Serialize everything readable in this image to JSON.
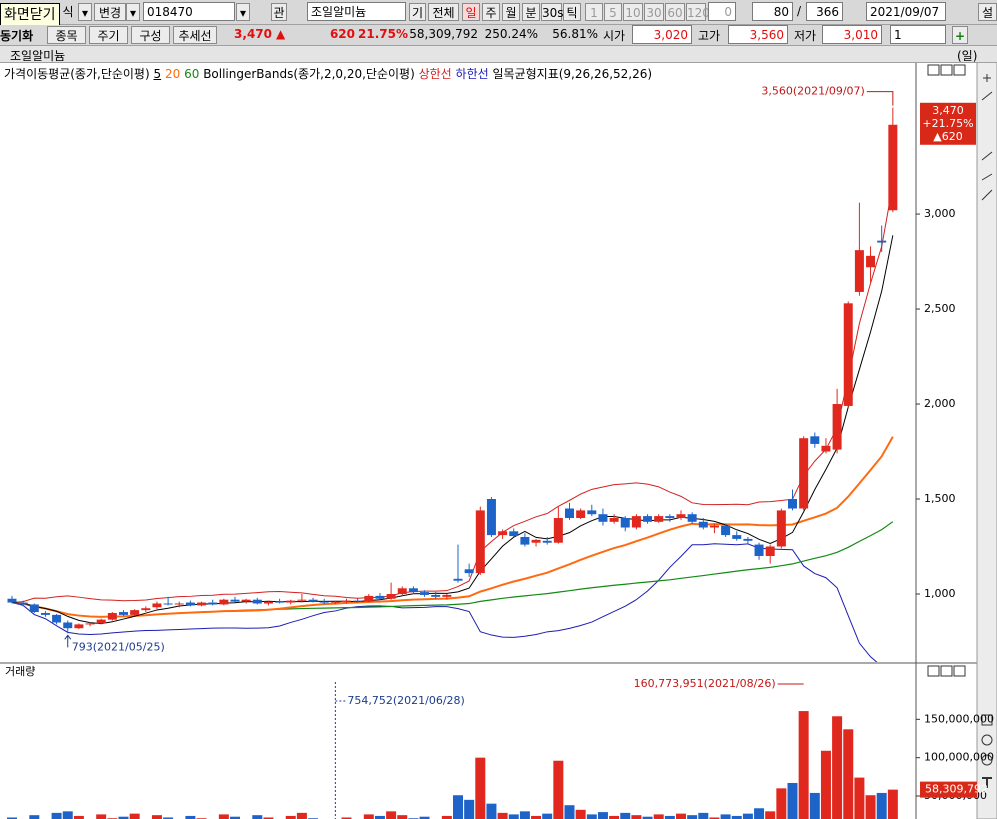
{
  "toolbar": {
    "close_tooltip": "화면닫기",
    "screen_fragment": "식",
    "change": "변경",
    "code": "018470",
    "watch": "관",
    "name": "조일알미늄",
    "basic": "기",
    "all": "전체",
    "periods": [
      "일",
      "주",
      "월",
      "분",
      "30s",
      "틱"
    ],
    "intervals": [
      "1",
      "5",
      "10",
      "30",
      "60",
      "120"
    ],
    "count_box": "0",
    "view_count": "80",
    "separator": "/",
    "total_count": "366",
    "date": "2021/09/07",
    "settings": "설"
  },
  "quote_bar": {
    "sync": "동기화",
    "buttons": [
      "종목",
      "주기",
      "구성",
      "추세선"
    ],
    "price": "3,470",
    "arrow": "▲",
    "change": "620",
    "change_rate": "21.75%",
    "volume": "58,309,792",
    "volume_ratio": "250.24%",
    "turnover": "56.81%",
    "open_label": "시가",
    "open": "3,020",
    "high_label": "고가",
    "high": "3,560",
    "low_label": "저가",
    "low": "3,010",
    "pane_count": "1"
  },
  "chart_data": [
    {
      "type": "candlestick",
      "title": "조일알미늄",
      "period": "(일)",
      "ma_label": "가격이동평균(종가,단순이평)",
      "ma_periods": [
        5,
        20,
        60
      ],
      "ma_colors": [
        "#000000",
        "#ff6a10",
        "#138a13"
      ],
      "bb_label": "BollingerBands(종가,2,0,20,단순이평)",
      "bb_upper": "상한선",
      "bb_lower": "하한선",
      "bb_colors": [
        "#d42020",
        "#1c1cb4"
      ],
      "ichimoku_label": "일목균형지표(9,26,26,52,26)",
      "up_color": "#e0281e",
      "down_color": "#1e64c8",
      "open": [
        975,
        955,
        945,
        900,
        890,
        850,
        820,
        840,
        845,
        865,
        905,
        890,
        915,
        930,
        950,
        945,
        955,
        940,
        955,
        945,
        970,
        960,
        970,
        950,
        960,
        955,
        965,
        970,
        960,
        955,
        960,
        965,
        960,
        990,
        975,
        1000,
        1030,
        1010,
        995,
        985,
        1080,
        1130,
        1110,
        1500,
        1310,
        1330,
        1300,
        1270,
        1280,
        1270,
        1450,
        1400,
        1440,
        1420,
        1380,
        1400,
        1350,
        1410,
        1380,
        1410,
        1400,
        1420,
        1380,
        1350,
        1360,
        1310,
        1290,
        1260,
        1200,
        1250,
        1500,
        1450,
        1830,
        1750,
        1760,
        1990,
        2590,
        2720,
        2860,
        3020
      ],
      "high": [
        990,
        965,
        950,
        910,
        895,
        860,
        845,
        850,
        870,
        905,
        915,
        920,
        935,
        960,
        985,
        960,
        965,
        960,
        970,
        975,
        985,
        975,
        980,
        965,
        975,
        970,
        1000,
        980,
        975,
        965,
        975,
        980,
        1000,
        1005,
        1060,
        1040,
        1040,
        1020,
        1010,
        1000,
        1260,
        1160,
        1460,
        1510,
        1340,
        1345,
        1320,
        1290,
        1300,
        1460,
        1480,
        1450,
        1470,
        1450,
        1420,
        1410,
        1420,
        1420,
        1420,
        1420,
        1440,
        1430,
        1400,
        1370,
        1370,
        1330,
        1300,
        1270,
        1260,
        1450,
        1550,
        1830,
        1850,
        1820,
        2080,
        2540,
        3060,
        2830,
        2940,
        3560
      ],
      "low": [
        950,
        935,
        900,
        880,
        840,
        793,
        815,
        830,
        840,
        860,
        885,
        885,
        905,
        920,
        940,
        930,
        935,
        935,
        940,
        940,
        955,
        950,
        945,
        940,
        950,
        945,
        955,
        955,
        945,
        945,
        950,
        955,
        955,
        970,
        970,
        990,
        1000,
        985,
        975,
        970,
        1060,
        1090,
        1100,
        1300,
        1290,
        1300,
        1250,
        1250,
        1260,
        1265,
        1390,
        1395,
        1410,
        1360,
        1370,
        1330,
        1340,
        1370,
        1375,
        1380,
        1390,
        1370,
        1340,
        1320,
        1300,
        1280,
        1260,
        1180,
        1160,
        1240,
        1440,
        1440,
        1770,
        1740,
        1740,
        1980,
        2570,
        2640,
        2800,
        3010
      ],
      "close": [
        955,
        945,
        905,
        890,
        850,
        820,
        840,
        845,
        865,
        900,
        890,
        915,
        925,
        950,
        945,
        950,
        940,
        955,
        945,
        970,
        960,
        970,
        950,
        960,
        955,
        965,
        970,
        960,
        955,
        960,
        965,
        960,
        990,
        975,
        1000,
        1030,
        1010,
        995,
        985,
        995,
        1070,
        1110,
        1440,
        1310,
        1330,
        1305,
        1260,
        1285,
        1270,
        1400,
        1400,
        1440,
        1420,
        1380,
        1400,
        1350,
        1410,
        1380,
        1410,
        1400,
        1420,
        1380,
        1350,
        1360,
        1310,
        1290,
        1280,
        1200,
        1250,
        1440,
        1450,
        1820,
        1790,
        1780,
        2000,
        2530,
        2810,
        2780,
        2850,
        3470
      ],
      "ylim": [
        642,
        3732
      ],
      "yticks": [
        {
          "value": 1000,
          "label": "1,000"
        },
        {
          "value": 1500,
          "label": "1,500"
        },
        {
          "value": 2000,
          "label": "2,000"
        },
        {
          "value": 2500,
          "label": "2,500"
        },
        {
          "value": 3000,
          "label": "3,000"
        }
      ],
      "high_annotation": "3,560(2021/09/07)",
      "low_annotation": "793(2021/05/25)",
      "current_price": "3,470",
      "current_rate": "+21.75%",
      "current_change": "▲620"
    },
    {
      "type": "bar",
      "title": "거래량",
      "values": [
        22000000,
        18000000,
        25000000,
        20000000,
        28000000,
        30000000,
        24000000,
        19000000,
        26000000,
        21000000,
        23000000,
        27000000,
        20000000,
        25000000,
        22000000,
        18000000,
        24000000,
        21000000,
        19000000,
        26000000,
        23000000,
        20000000,
        25000000,
        22000000,
        18000000,
        24000000,
        28000000,
        21000000,
        19000000,
        754752,
        22000000,
        20000000,
        26000000,
        24000000,
        30000000,
        25000000,
        21000000,
        23000000,
        20000000,
        24000000,
        51000000,
        45000000,
        100000000,
        40000000,
        28000000,
        26000000,
        30000000,
        24000000,
        27000000,
        96000000,
        38000000,
        32000000,
        26000000,
        29000000,
        24000000,
        28000000,
        25000000,
        23000000,
        26000000,
        24000000,
        27000000,
        25000000,
        28000000,
        22000000,
        26000000,
        24000000,
        27000000,
        34000000,
        30000000,
        60000000,
        67000000,
        160773951,
        54000000,
        109000000,
        154000000,
        137000000,
        74000000,
        51000000,
        54000000,
        58309792
      ],
      "ylim": [
        20000000,
        200000000
      ],
      "yticks": [
        {
          "value": 50000000,
          "label": "50,000,000"
        },
        {
          "value": 100000000,
          "label": "100,000,000"
        },
        {
          "value": 150000000,
          "label": "150,000,000"
        }
      ],
      "min_annotation": "754,752(2021/06/28)",
      "max_annotation": "160,773,951(2021/08/26)",
      "current_label": "58,309,792"
    }
  ]
}
